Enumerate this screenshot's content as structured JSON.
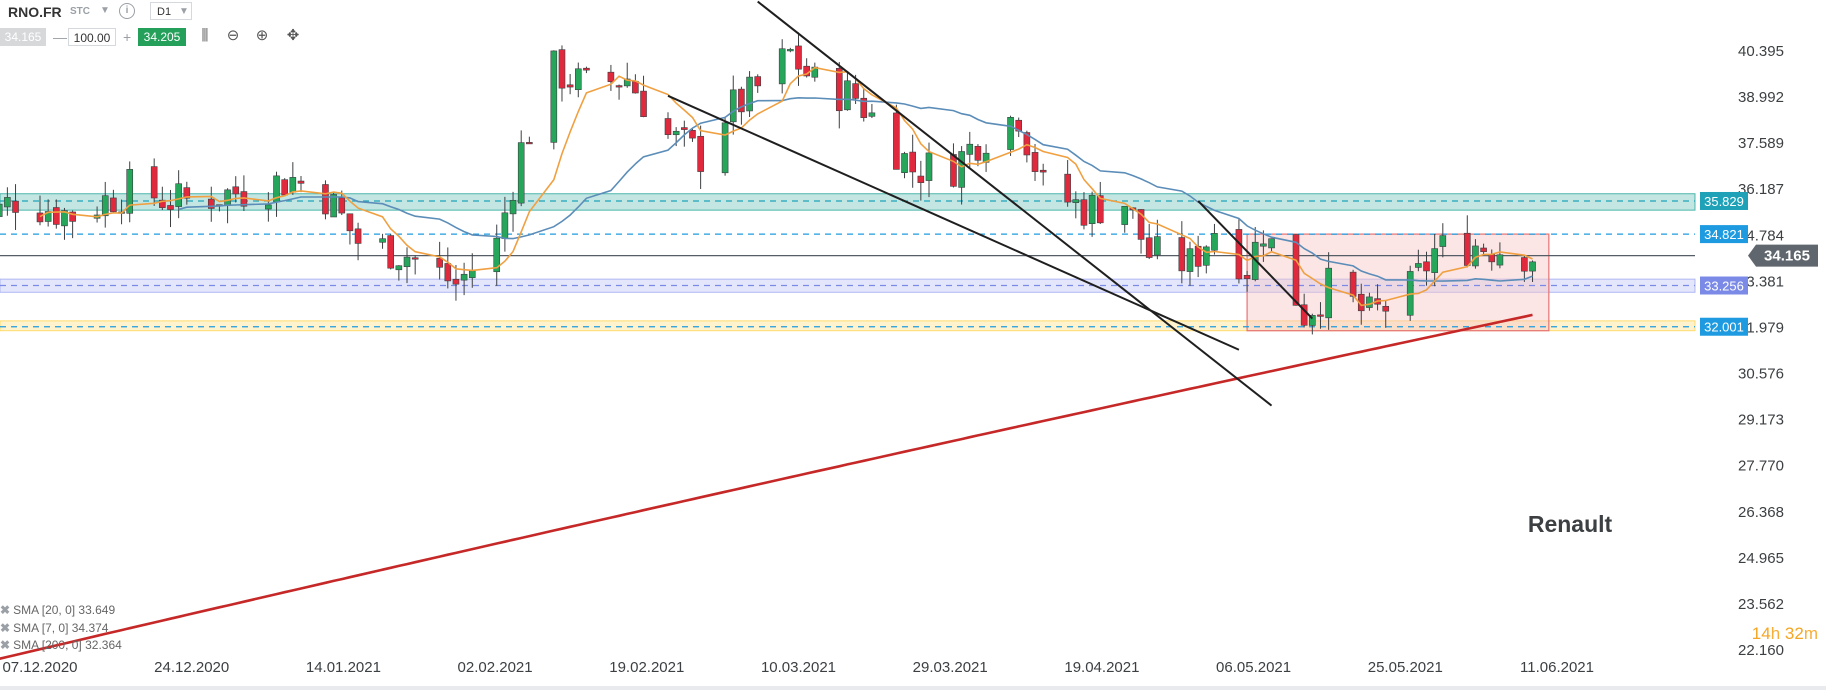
{
  "toolbar": {
    "symbol": "RNO.FR",
    "type": "STC",
    "timeframe": "D1",
    "bid": "34.165",
    "quantity": "100.00",
    "ask": "34.205",
    "minus": "—",
    "plus": "+",
    "info": "i"
  },
  "chart_data": {
    "type": "candlestick",
    "x_labels": [
      "07.12.2020",
      "24.12.2020",
      "14.01.2021",
      "02.02.2021",
      "19.02.2021",
      "10.03.2021",
      "29.03.2021",
      "19.04.2021",
      "06.05.2021",
      "25.05.2021",
      "11.06.2021"
    ],
    "y_ticks": [
      "40.395",
      "38.992",
      "37.589",
      "36.187",
      "34.784",
      "33.381",
      "31.979",
      "30.576",
      "29.173",
      "27.770",
      "26.368",
      "24.965",
      "23.562",
      "22.160"
    ],
    "ylim": [
      22.16,
      40.395
    ],
    "current_price": "34.165",
    "levels": [
      {
        "value": 35.829,
        "label": "35.829",
        "color": "#1fa2b8"
      },
      {
        "value": 34.821,
        "label": "34.821",
        "color": "#1e9be0"
      },
      {
        "value": 33.256,
        "label": "33.256",
        "color": "#7a8ae6"
      },
      {
        "value": 32.001,
        "label": "32.001",
        "color": "#1e9be0"
      }
    ],
    "zones": [
      {
        "from": 35.55,
        "to": 36.05,
        "color": "#26a69a"
      },
      {
        "from": 33.05,
        "to": 33.45,
        "color": "#9fa8f0"
      },
      {
        "from": 31.88,
        "to": 32.18,
        "color": "#ffd54f"
      }
    ],
    "consolidation_box": {
      "from_date": "04.05.2021",
      "to_date": "10.06.2021",
      "high": 34.821,
      "low": 31.88
    },
    "trendlines": [
      {
        "from": [
          "05.03.2021",
          41.9
        ],
        "to": [
          "07.05.2021",
          29.6
        ]
      },
      {
        "from": [
          "22.02.2021",
          39.03
        ],
        "to": [
          "03.05.2021",
          31.3
        ]
      },
      {
        "from": [
          "28.04.2021",
          35.83
        ],
        "to": [
          "12.05.2021",
          32.25
        ]
      }
    ],
    "annotation": "Renault",
    "series": [
      {
        "name": "SMA [20, 0] 33.649",
        "color": "#5b8db8"
      },
      {
        "name": "SMA [7, 0] 34.374",
        "color": "#f0a040"
      },
      {
        "name": "SMA [200, 0] 32.364",
        "color": "#c62828"
      }
    ],
    "timer": {
      "h": "14",
      "m": "32",
      "hu": "h",
      "mu": "m"
    }
  }
}
